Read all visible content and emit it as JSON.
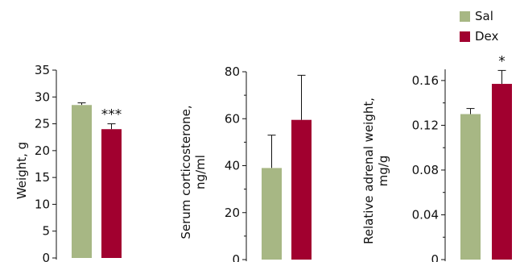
{
  "colors": {
    "sal": "#a7b784",
    "dex": "#a1002f"
  },
  "legend": {
    "items": [
      {
        "label": "Sal"
      },
      {
        "label": "Dex"
      }
    ]
  },
  "chart_data": [
    {
      "type": "bar",
      "categories": [
        "Sal",
        "Dex"
      ],
      "values": [
        28.5,
        24.0
      ],
      "errors": [
        0.4,
        1.0
      ],
      "ylabel_lines": [
        "Weight, g"
      ],
      "ylim": [
        0,
        35
      ],
      "yticks": [
        0,
        5,
        10,
        15,
        20,
        25,
        30,
        35
      ],
      "ytick_labels": [
        "0",
        "5",
        "10",
        "15",
        "20",
        "25",
        "30",
        "35"
      ],
      "annotations": [
        {
          "text": "***",
          "series": "Dex"
        }
      ]
    },
    {
      "type": "bar",
      "categories": [
        "Sal",
        "Dex"
      ],
      "values": [
        39,
        59.5
      ],
      "errors": [
        14,
        19
      ],
      "ylabel_lines": [
        "Serum corticosterone,",
        "ng/ml"
      ],
      "ylim": [
        0,
        80
      ],
      "yticks": [
        0,
        20,
        40,
        60,
        80
      ],
      "ytick_labels": [
        "0",
        "20",
        "40",
        "60",
        "80"
      ],
      "minor_yticks": [
        10,
        30,
        50,
        70
      ],
      "annotations": []
    },
    {
      "type": "bar",
      "categories": [
        "Sal",
        "Dex"
      ],
      "values": [
        0.13,
        0.157
      ],
      "errors": [
        0.005,
        0.012
      ],
      "ylabel_lines": [
        "Relative adrenal weight,",
        "mg/g"
      ],
      "ylim": [
        0,
        0.17
      ],
      "yticks": [
        0,
        0.04,
        0.08,
        0.12,
        0.16
      ],
      "ytick_labels": [
        "0",
        "0.04",
        "0.08",
        "0.12",
        "0.16"
      ],
      "minor_yticks": [
        0.02,
        0.06,
        0.1,
        0.14
      ],
      "annotations": [
        {
          "text": "*",
          "series": "Dex"
        }
      ]
    }
  ]
}
